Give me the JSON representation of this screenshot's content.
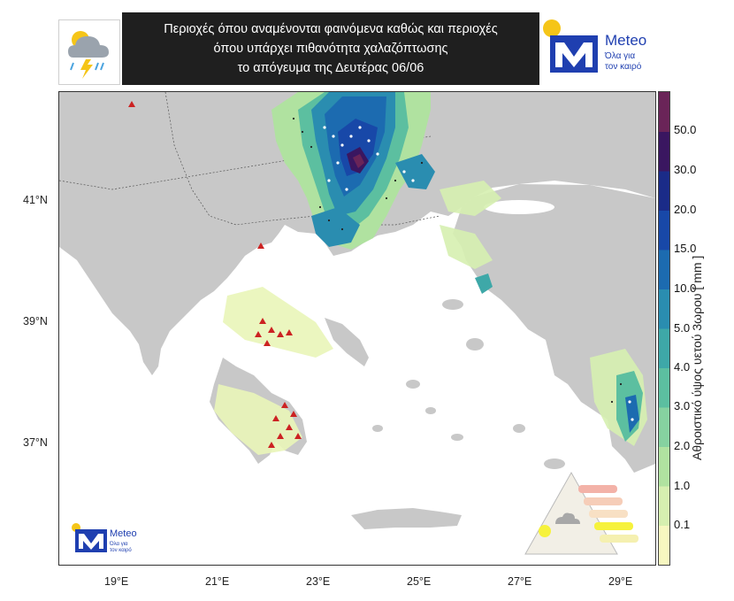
{
  "title": {
    "line1": "Περιοχές όπου αναμένονται φαινόμενα καθώς και περιοχές",
    "line2": "όπου υπάρχει πιθανότητα χαλαζόπτωσης",
    "line3": "το απόγευμα της Δευτέρας 06/06"
  },
  "logo": {
    "brand": "Meteo",
    "slogan_line1": "Όλα για",
    "slogan_line2": "τον καιρό"
  },
  "map": {
    "lat_labels": [
      "41°N",
      "39°N",
      "37°N"
    ],
    "lon_labels": [
      "19°E",
      "21°E",
      "23°E",
      "25°E",
      "27°E",
      "29°E"
    ]
  },
  "colorbar": {
    "label": "Αθροιστικό ύψος υετού 3ωρου [ mm ]",
    "ticks": [
      "50.0",
      "30.0",
      "20.0",
      "15.0",
      "10.0",
      "5.0",
      "4.0",
      "3.0",
      "2.0",
      "1.0",
      "0.1"
    ],
    "colors": [
      "#f7f7c0",
      "#d6efb0",
      "#b0e2a0",
      "#86d2a0",
      "#5cbfa0",
      "#3ea8a8",
      "#2a8db0",
      "#1c6bb0",
      "#1848a8",
      "#1a2b88",
      "#3a1660",
      "#6a2458"
    ]
  },
  "legend_icon": "hail-risk-triangle-icon",
  "header_icon": "thunderstorm-cloud-icon"
}
